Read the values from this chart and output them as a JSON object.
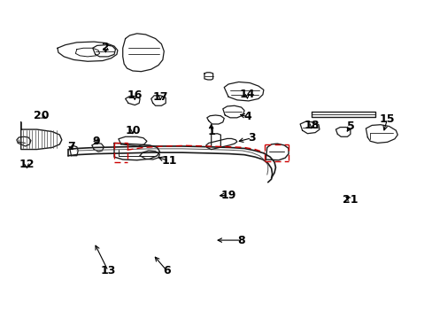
{
  "bg_color": "#ffffff",
  "line_color": "#1a1a1a",
  "red_color": "#cc0000",
  "fontsize": 9,
  "label_positions": {
    "1": [
      0.484,
      0.415,
      0.478,
      0.37
    ],
    "2": [
      0.24,
      0.148,
      0.248,
      0.172
    ],
    "3": [
      0.582,
      0.438,
      0.54,
      0.452
    ],
    "4": [
      0.565,
      0.368,
      0.545,
      0.358
    ],
    "5": [
      0.81,
      0.398,
      0.81,
      0.432
    ],
    "6": [
      0.388,
      0.858,
      0.358,
      0.8
    ],
    "7": [
      0.168,
      0.468,
      0.172,
      0.49
    ],
    "8": [
      0.558,
      0.762,
      0.5,
      0.762
    ],
    "9": [
      0.222,
      0.45,
      0.232,
      0.462
    ],
    "10": [
      0.305,
      0.415,
      0.305,
      0.44
    ],
    "11": [
      0.388,
      0.512,
      0.355,
      0.525
    ],
    "12": [
      0.06,
      0.518,
      0.065,
      0.548
    ],
    "13": [
      0.248,
      0.858,
      0.218,
      0.778
    ],
    "14": [
      0.572,
      0.302,
      0.572,
      0.328
    ],
    "15": [
      0.898,
      0.378,
      0.895,
      0.418
    ],
    "16": [
      0.312,
      0.305,
      0.312,
      0.328
    ],
    "17": [
      0.37,
      0.308,
      0.368,
      0.332
    ],
    "18": [
      0.722,
      0.398,
      0.725,
      0.418
    ],
    "19": [
      0.528,
      0.618,
      0.505,
      0.62
    ],
    "20": [
      0.095,
      0.368,
      0.112,
      0.378
    ],
    "21": [
      0.812,
      0.632,
      0.795,
      0.618
    ]
  }
}
